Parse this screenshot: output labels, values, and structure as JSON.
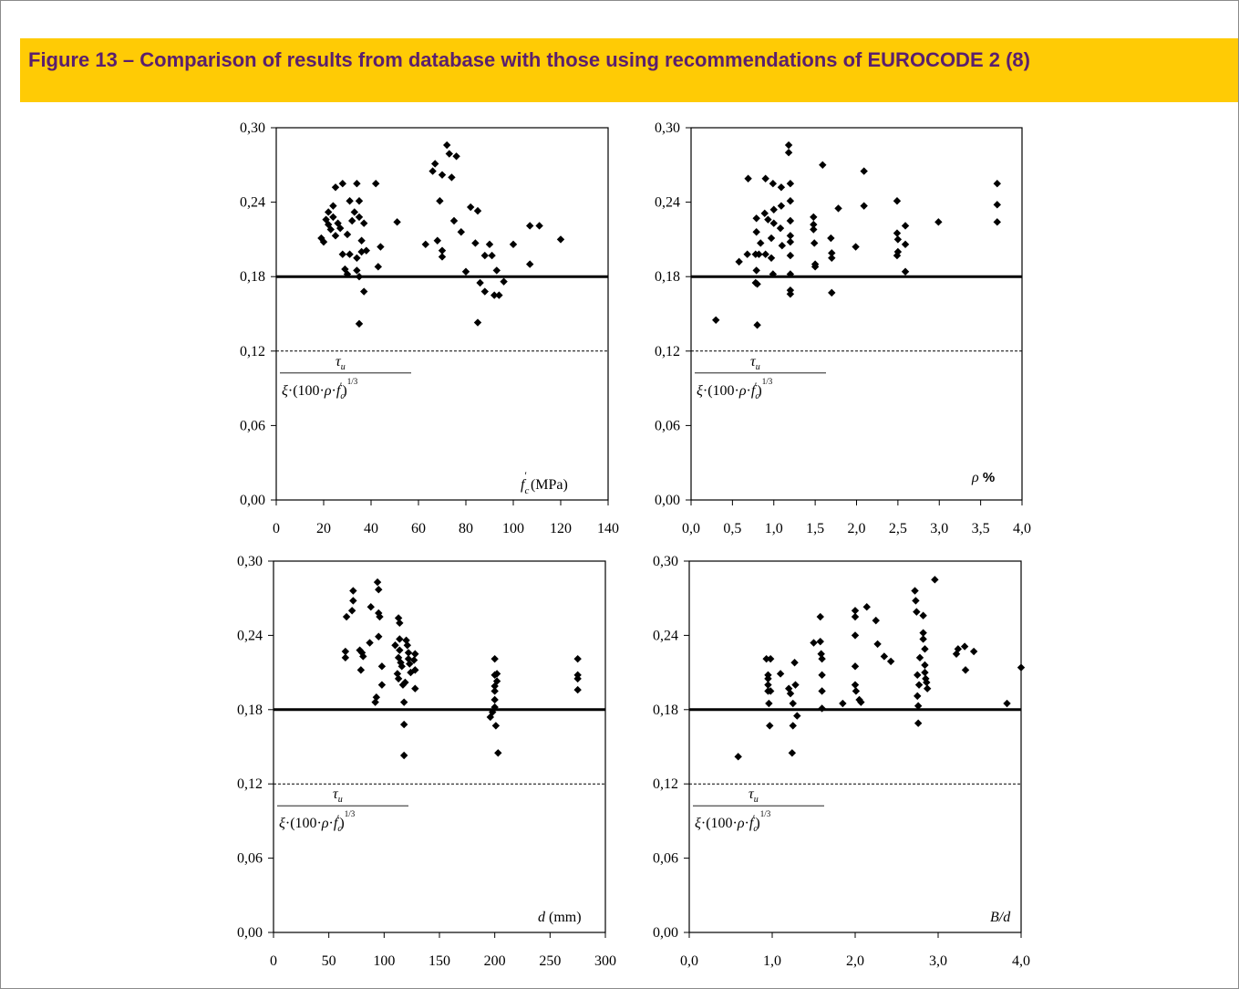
{
  "figure": {
    "title": "Figure 13 – Comparison of results from database with those using recommendations of EUROCODE 2 (8)",
    "accent_color": "#ffcb05",
    "title_color": "#5a1f6e"
  },
  "formula_label": {
    "numerator": "τu",
    "denominator": "ξ·(100·ρ·f'c)^(1/3)"
  },
  "chart_data": [
    {
      "type": "scatter",
      "title": "",
      "xlabel": "f'c (MPa)",
      "ylabel": "",
      "xlim": [
        0,
        140
      ],
      "ylim": [
        0,
        0.3
      ],
      "x_ticks": [
        "0",
        "20",
        "40",
        "60",
        "80",
        "100",
        "120",
        "140"
      ],
      "y_ticks": [
        "0,00",
        "0,06",
        "0,12",
        "0,18",
        "0,24",
        "0,30"
      ],
      "reference_line": 0.18,
      "dashed_line": 0.12,
      "points": [
        [
          19,
          0.211
        ],
        [
          20,
          0.208
        ],
        [
          21,
          0.226
        ],
        [
          22,
          0.222
        ],
        [
          22,
          0.232
        ],
        [
          23,
          0.218
        ],
        [
          24,
          0.228
        ],
        [
          24,
          0.237
        ],
        [
          25,
          0.252
        ],
        [
          25,
          0.213
        ],
        [
          26,
          0.223
        ],
        [
          27,
          0.219
        ],
        [
          28,
          0.198
        ],
        [
          28,
          0.255
        ],
        [
          29,
          0.186
        ],
        [
          30,
          0.182
        ],
        [
          30,
          0.214
        ],
        [
          31,
          0.241
        ],
        [
          31,
          0.198
        ],
        [
          32,
          0.225
        ],
        [
          33,
          0.232
        ],
        [
          34,
          0.185
        ],
        [
          34,
          0.255
        ],
        [
          34,
          0.195
        ],
        [
          35,
          0.228
        ],
        [
          35,
          0.241
        ],
        [
          35,
          0.142
        ],
        [
          35,
          0.18
        ],
        [
          36,
          0.209
        ],
        [
          36,
          0.2
        ],
        [
          37,
          0.223
        ],
        [
          37,
          0.168
        ],
        [
          38,
          0.201
        ],
        [
          42,
          0.255
        ],
        [
          43,
          0.188
        ],
        [
          44,
          0.204
        ],
        [
          51,
          0.224
        ],
        [
          63,
          0.206
        ],
        [
          66,
          0.265
        ],
        [
          67,
          0.271
        ],
        [
          68,
          0.209
        ],
        [
          69,
          0.241
        ],
        [
          70,
          0.201
        ],
        [
          70,
          0.196
        ],
        [
          70,
          0.262
        ],
        [
          72,
          0.286
        ],
        [
          73,
          0.279
        ],
        [
          74,
          0.26
        ],
        [
          75,
          0.225
        ],
        [
          76,
          0.277
        ],
        [
          78,
          0.216
        ],
        [
          80,
          0.184
        ],
        [
          82,
          0.236
        ],
        [
          84,
          0.207
        ],
        [
          85,
          0.233
        ],
        [
          85,
          0.143
        ],
        [
          86,
          0.175
        ],
        [
          88,
          0.197
        ],
        [
          88,
          0.168
        ],
        [
          90,
          0.206
        ],
        [
          91,
          0.197
        ],
        [
          92,
          0.165
        ],
        [
          93,
          0.185
        ],
        [
          94,
          0.165
        ],
        [
          96,
          0.176
        ],
        [
          100,
          0.206
        ],
        [
          107,
          0.221
        ],
        [
          107,
          0.19
        ],
        [
          111,
          0.221
        ],
        [
          120,
          0.21
        ]
      ]
    },
    {
      "type": "scatter",
      "title": "",
      "xlabel": "ρ %",
      "ylabel": "",
      "xlim": [
        0,
        4.0
      ],
      "ylim": [
        0,
        0.3
      ],
      "x_ticks": [
        "0,0",
        "0,5",
        "1,0",
        "1,5",
        "2,0",
        "2,5",
        "3,0",
        "3,5",
        "4,0"
      ],
      "y_ticks": [
        "0,00",
        "0,06",
        "0,12",
        "0,18",
        "0,24",
        "0,30"
      ],
      "reference_line": 0.18,
      "dashed_line": 0.12,
      "points": [
        [
          0.3,
          0.145
        ],
        [
          0.58,
          0.192
        ],
        [
          0.68,
          0.198
        ],
        [
          0.69,
          0.259
        ],
        [
          0.78,
          0.175
        ],
        [
          0.78,
          0.198
        ],
        [
          0.79,
          0.216
        ],
        [
          0.79,
          0.227
        ],
        [
          0.79,
          0.185
        ],
        [
          0.8,
          0.141
        ],
        [
          0.8,
          0.174
        ],
        [
          0.82,
          0.198
        ],
        [
          0.84,
          0.207
        ],
        [
          0.89,
          0.231
        ],
        [
          0.9,
          0.198
        ],
        [
          0.9,
          0.259
        ],
        [
          0.93,
          0.226
        ],
        [
          0.97,
          0.195
        ],
        [
          0.97,
          0.211
        ],
        [
          0.99,
          0.255
        ],
        [
          0.99,
          0.182
        ],
        [
          1.0,
          0.234
        ],
        [
          1.0,
          0.223
        ],
        [
          1.08,
          0.219
        ],
        [
          1.09,
          0.252
        ],
        [
          1.09,
          0.237
        ],
        [
          1.1,
          0.205
        ],
        [
          1.18,
          0.286
        ],
        [
          1.18,
          0.28
        ],
        [
          1.2,
          0.225
        ],
        [
          1.2,
          0.197
        ],
        [
          1.2,
          0.208
        ],
        [
          1.2,
          0.182
        ],
        [
          1.2,
          0.169
        ],
        [
          1.2,
          0.166
        ],
        [
          1.2,
          0.241
        ],
        [
          1.2,
          0.213
        ],
        [
          1.2,
          0.255
        ],
        [
          1.48,
          0.228
        ],
        [
          1.48,
          0.222
        ],
        [
          1.48,
          0.218
        ],
        [
          1.49,
          0.207
        ],
        [
          1.5,
          0.19
        ],
        [
          1.5,
          0.188
        ],
        [
          1.59,
          0.27
        ],
        [
          1.69,
          0.211
        ],
        [
          1.7,
          0.195
        ],
        [
          1.7,
          0.199
        ],
        [
          1.7,
          0.167
        ],
        [
          1.78,
          0.235
        ],
        [
          1.99,
          0.204
        ],
        [
          2.09,
          0.265
        ],
        [
          2.09,
          0.237
        ],
        [
          2.49,
          0.241
        ],
        [
          2.49,
          0.197
        ],
        [
          2.49,
          0.215
        ],
        [
          2.5,
          0.21
        ],
        [
          2.5,
          0.2
        ],
        [
          2.59,
          0.221
        ],
        [
          2.59,
          0.206
        ],
        [
          2.59,
          0.184
        ],
        [
          2.99,
          0.224
        ],
        [
          3.7,
          0.255
        ],
        [
          3.7,
          0.238
        ],
        [
          3.7,
          0.224
        ]
      ]
    },
    {
      "type": "scatter",
      "title": "",
      "xlabel": "d (mm)",
      "ylabel": "",
      "xlim": [
        0,
        300
      ],
      "ylim": [
        0,
        0.3
      ],
      "x_ticks": [
        "0",
        "50",
        "100",
        "150",
        "200",
        "250",
        "300"
      ],
      "y_ticks": [
        "0,00",
        "0,06",
        "0,12",
        "0,18",
        "0,24",
        "0,30"
      ],
      "reference_line": 0.18,
      "dashed_line": 0.12,
      "points": [
        [
          65,
          0.227
        ],
        [
          65,
          0.222
        ],
        [
          66,
          0.255
        ],
        [
          71,
          0.26
        ],
        [
          72,
          0.276
        ],
        [
          72,
          0.268
        ],
        [
          78,
          0.228
        ],
        [
          79,
          0.212
        ],
        [
          80,
          0.226
        ],
        [
          81,
          0.223
        ],
        [
          87,
          0.234
        ],
        [
          88,
          0.263
        ],
        [
          92,
          0.186
        ],
        [
          93,
          0.19
        ],
        [
          94,
          0.283
        ],
        [
          95,
          0.277
        ],
        [
          95,
          0.258
        ],
        [
          95,
          0.239
        ],
        [
          96,
          0.255
        ],
        [
          98,
          0.215
        ],
        [
          98,
          0.2
        ],
        [
          110,
          0.232
        ],
        [
          112,
          0.209
        ],
        [
          113,
          0.205
        ],
        [
          113,
          0.222
        ],
        [
          113,
          0.254
        ],
        [
          114,
          0.25
        ],
        [
          114,
          0.237
        ],
        [
          114,
          0.228
        ],
        [
          115,
          0.218
        ],
        [
          116,
          0.215
        ],
        [
          117,
          0.2
        ],
        [
          118,
          0.186
        ],
        [
          118,
          0.168
        ],
        [
          118,
          0.143
        ],
        [
          119,
          0.202
        ],
        [
          120,
          0.236
        ],
        [
          121,
          0.232
        ],
        [
          122,
          0.226
        ],
        [
          122,
          0.221
        ],
        [
          123,
          0.217
        ],
        [
          124,
          0.21
        ],
        [
          127,
          0.22
        ],
        [
          128,
          0.225
        ],
        [
          128,
          0.212
        ],
        [
          128,
          0.197
        ],
        [
          196,
          0.174
        ],
        [
          198,
          0.178
        ],
        [
          200,
          0.221
        ],
        [
          200,
          0.208
        ],
        [
          200,
          0.199
        ],
        [
          200,
          0.195
        ],
        [
          200,
          0.188
        ],
        [
          200,
          0.182
        ],
        [
          201,
          0.167
        ],
        [
          202,
          0.203
        ],
        [
          202,
          0.209
        ],
        [
          203,
          0.145
        ],
        [
          275,
          0.221
        ],
        [
          275,
          0.208
        ],
        [
          275,
          0.196
        ],
        [
          275,
          0.205
        ]
      ]
    },
    {
      "type": "scatter",
      "title": "",
      "xlabel": "B/d",
      "ylabel": "",
      "xlim": [
        0,
        4.0
      ],
      "ylim": [
        0,
        0.3
      ],
      "x_ticks": [
        "0,0",
        "1,0",
        "2,0",
        "3,0",
        "4,0"
      ],
      "y_ticks": [
        "0,00",
        "0,06",
        "0,12",
        "0,18",
        "0,24",
        "0,30"
      ],
      "reference_line": 0.18,
      "dashed_line": 0.12,
      "points": [
        [
          0.59,
          0.142
        ],
        [
          0.93,
          0.221
        ],
        [
          0.95,
          0.208
        ],
        [
          0.95,
          0.205
        ],
        [
          0.95,
          0.2
        ],
        [
          0.95,
          0.195
        ],
        [
          0.96,
          0.185
        ],
        [
          0.97,
          0.167
        ],
        [
          0.98,
          0.221
        ],
        [
          0.98,
          0.195
        ],
        [
          1.1,
          0.209
        ],
        [
          1.2,
          0.197
        ],
        [
          1.22,
          0.193
        ],
        [
          1.24,
          0.145
        ],
        [
          1.25,
          0.167
        ],
        [
          1.25,
          0.185
        ],
        [
          1.27,
          0.218
        ],
        [
          1.28,
          0.2
        ],
        [
          1.3,
          0.175
        ],
        [
          1.5,
          0.234
        ],
        [
          1.58,
          0.255
        ],
        [
          1.58,
          0.235
        ],
        [
          1.59,
          0.225
        ],
        [
          1.6,
          0.221
        ],
        [
          1.6,
          0.208
        ],
        [
          1.6,
          0.195
        ],
        [
          1.6,
          0.181
        ],
        [
          1.85,
          0.185
        ],
        [
          2.0,
          0.255
        ],
        [
          2.0,
          0.26
        ],
        [
          2.0,
          0.24
        ],
        [
          2.0,
          0.2
        ],
        [
          2.0,
          0.215
        ],
        [
          2.01,
          0.195
        ],
        [
          2.05,
          0.188
        ],
        [
          2.07,
          0.186
        ],
        [
          2.14,
          0.263
        ],
        [
          2.25,
          0.252
        ],
        [
          2.27,
          0.233
        ],
        [
          2.35,
          0.223
        ],
        [
          2.43,
          0.219
        ],
        [
          2.72,
          0.276
        ],
        [
          2.73,
          0.268
        ],
        [
          2.74,
          0.259
        ],
        [
          2.75,
          0.208
        ],
        [
          2.75,
          0.191
        ],
        [
          2.76,
          0.183
        ],
        [
          2.76,
          0.169
        ],
        [
          2.77,
          0.2
        ],
        [
          2.78,
          0.222
        ],
        [
          2.82,
          0.256
        ],
        [
          2.82,
          0.242
        ],
        [
          2.82,
          0.237
        ],
        [
          2.84,
          0.229
        ],
        [
          2.84,
          0.21
        ],
        [
          2.84,
          0.216
        ],
        [
          2.85,
          0.205
        ],
        [
          2.86,
          0.202
        ],
        [
          2.87,
          0.197
        ],
        [
          2.96,
          0.285
        ],
        [
          3.22,
          0.225
        ],
        [
          3.24,
          0.229
        ],
        [
          3.32,
          0.231
        ],
        [
          3.33,
          0.212
        ],
        [
          3.43,
          0.227
        ],
        [
          3.83,
          0.185
        ],
        [
          4.0,
          0.214
        ]
      ]
    }
  ]
}
